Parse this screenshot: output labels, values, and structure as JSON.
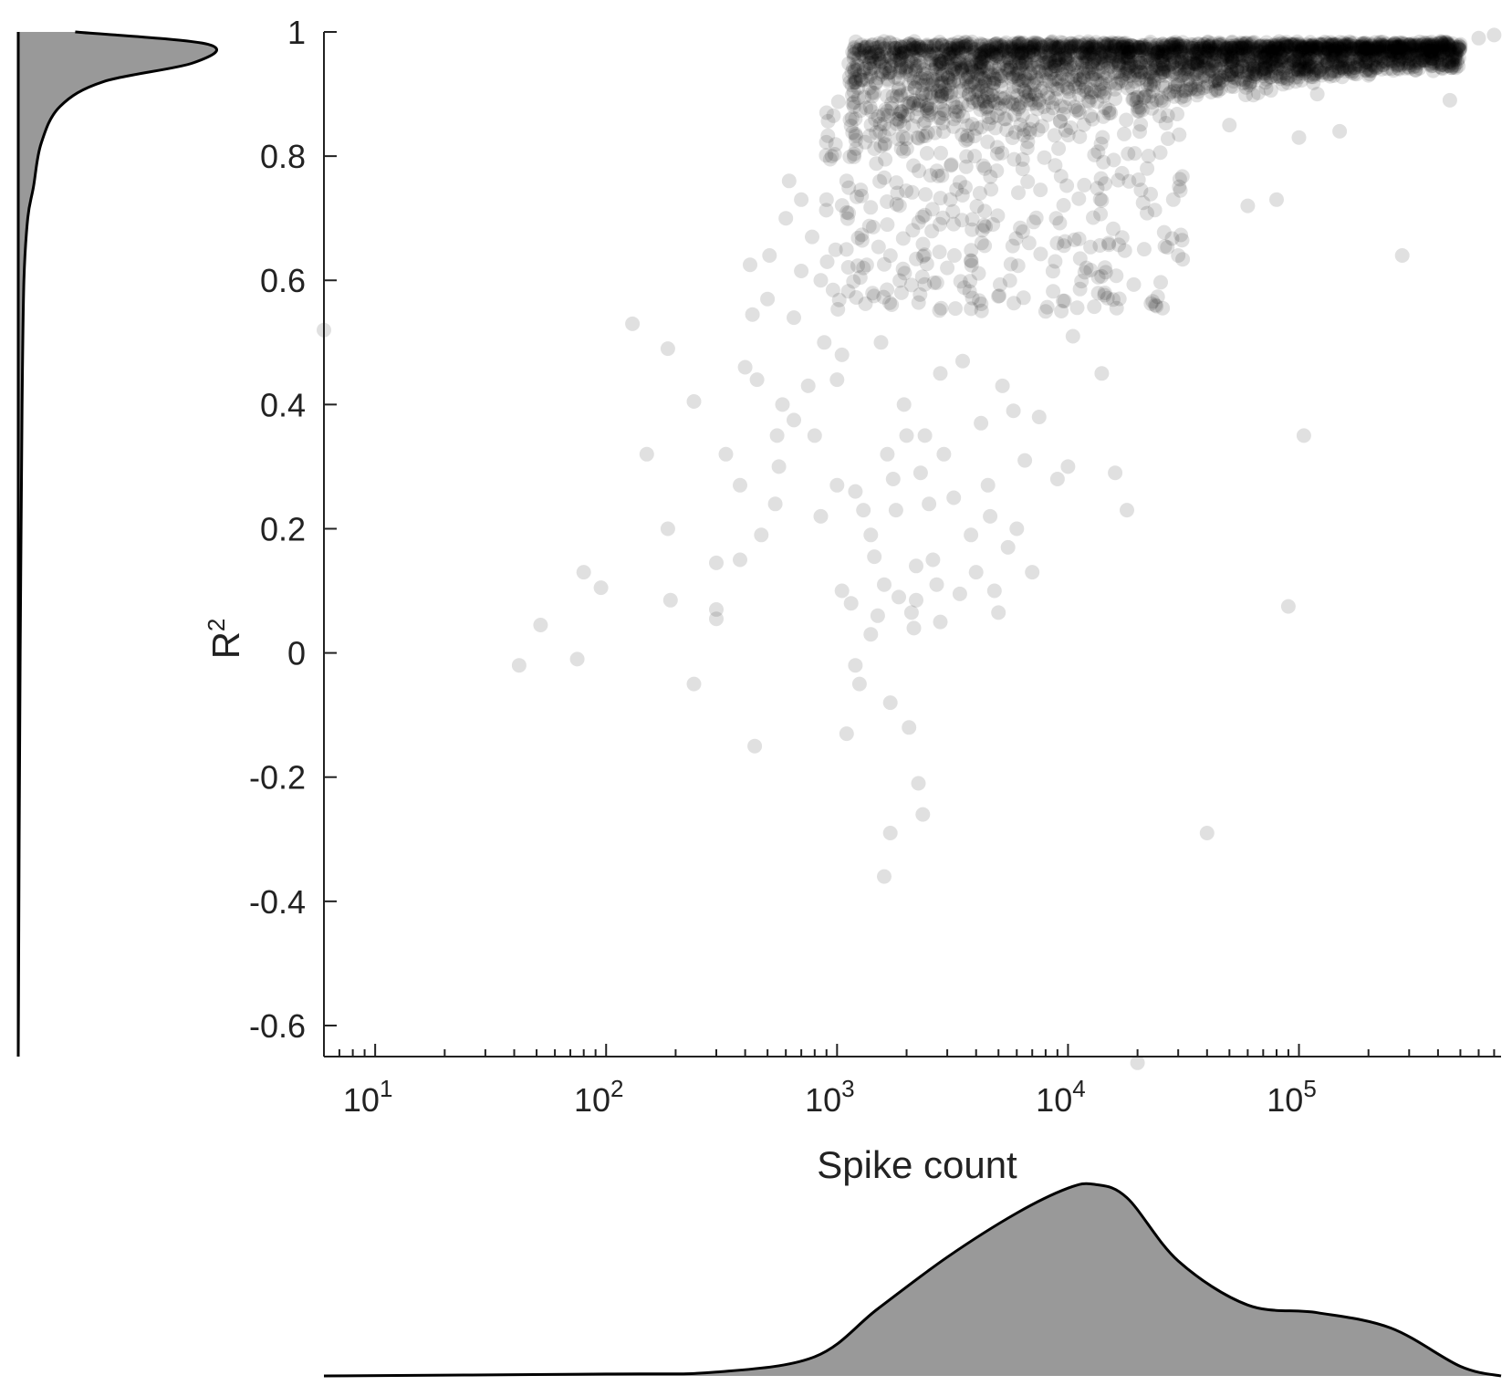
{
  "chart_data": {
    "type": "scatter",
    "xlabel": "Spike count",
    "ylabel_base": "R",
    "ylabel_sup": "2",
    "x_scale": "log",
    "xlim": [
      6,
      750000
    ],
    "ylim": [
      -0.65,
      1.0
    ],
    "x_ticks": [
      {
        "base": "10",
        "exp": "1",
        "value": 10
      },
      {
        "base": "10",
        "exp": "2",
        "value": 100
      },
      {
        "base": "10",
        "exp": "3",
        "value": 1000
      },
      {
        "base": "10",
        "exp": "4",
        "value": 10000
      },
      {
        "base": "10",
        "exp": "5",
        "value": 100000
      }
    ],
    "y_ticks": [
      "1",
      "0.8",
      "0.6",
      "0.4",
      "0.2",
      "0",
      "-0.2",
      "-0.4",
      "-0.6"
    ],
    "y_tick_values": [
      1,
      0.8,
      0.6,
      0.4,
      0.2,
      0,
      -0.2,
      -0.4,
      -0.6
    ],
    "grid": false,
    "marker_color": "#000000",
    "marker_alpha": 0.12,
    "density_fill": "#999999",
    "density_line": "#000000",
    "points": [
      [
        6,
        0.52
      ],
      [
        42,
        -0.02
      ],
      [
        52,
        0.045
      ],
      [
        75,
        -0.01
      ],
      [
        80,
        0.13
      ],
      [
        95,
        0.105
      ],
      [
        130,
        0.53
      ],
      [
        150,
        0.32
      ],
      [
        185,
        0.49
      ],
      [
        185,
        0.2
      ],
      [
        190,
        0.085
      ],
      [
        240,
        -0.05
      ],
      [
        240,
        0.405
      ],
      [
        300,
        0.145
      ],
      [
        300,
        0.07
      ],
      [
        300,
        0.055
      ],
      [
        330,
        0.32
      ],
      [
        380,
        0.15
      ],
      [
        380,
        0.27
      ],
      [
        400,
        0.46
      ],
      [
        420,
        0.625
      ],
      [
        430,
        0.545
      ],
      [
        440,
        -0.15
      ],
      [
        450,
        0.44
      ],
      [
        470,
        0.19
      ],
      [
        500,
        0.57
      ],
      [
        510,
        0.64
      ],
      [
        540,
        0.24
      ],
      [
        550,
        0.35
      ],
      [
        560,
        0.3
      ],
      [
        580,
        0.4
      ],
      [
        600,
        0.7
      ],
      [
        620,
        0.76
      ],
      [
        650,
        0.54
      ],
      [
        650,
        0.375
      ],
      [
        700,
        0.73
      ],
      [
        700,
        0.615
      ],
      [
        750,
        0.43
      ],
      [
        780,
        0.67
      ],
      [
        800,
        0.35
      ],
      [
        850,
        0.6
      ],
      [
        850,
        0.22
      ],
      [
        880,
        0.5
      ],
      [
        900,
        0.87
      ],
      [
        900,
        0.73
      ],
      [
        950,
        0.8
      ],
      [
        1000,
        0.44
      ],
      [
        1000,
        0.27
      ],
      [
        1050,
        0.1
      ],
      [
        1050,
        0.48
      ],
      [
        1100,
        -0.13
      ],
      [
        1100,
        0.76
      ],
      [
        1150,
        0.08
      ],
      [
        1200,
        -0.02
      ],
      [
        1200,
        0.26
      ],
      [
        1250,
        -0.05
      ],
      [
        1300,
        0.23
      ],
      [
        1300,
        0.62
      ],
      [
        1400,
        0.19
      ],
      [
        1400,
        0.03
      ],
      [
        1450,
        0.155
      ],
      [
        1500,
        0.06
      ],
      [
        1550,
        0.5
      ],
      [
        1600,
        0.11
      ],
      [
        1650,
        0.32
      ],
      [
        1700,
        -0.08
      ],
      [
        1700,
        -0.29
      ],
      [
        1600,
        -0.36
      ],
      [
        1750,
        0.28
      ],
      [
        1800,
        0.23
      ],
      [
        1850,
        0.09
      ],
      [
        1900,
        0.58
      ],
      [
        1950,
        0.4
      ],
      [
        2000,
        0.35
      ],
      [
        2050,
        -0.12
      ],
      [
        2100,
        0.065
      ],
      [
        2150,
        0.04
      ],
      [
        2200,
        0.14
      ],
      [
        2200,
        0.085
      ],
      [
        2250,
        -0.21
      ],
      [
        2300,
        0.29
      ],
      [
        2350,
        -0.26
      ],
      [
        2400,
        0.35
      ],
      [
        2500,
        0.24
      ],
      [
        2600,
        0.15
      ],
      [
        2700,
        0.11
      ],
      [
        2800,
        0.05
      ],
      [
        2800,
        0.45
      ],
      [
        2900,
        0.32
      ],
      [
        3000,
        0.62
      ],
      [
        3200,
        0.25
      ],
      [
        3400,
        0.095
      ],
      [
        3500,
        0.47
      ],
      [
        3800,
        0.19
      ],
      [
        4000,
        0.13
      ],
      [
        4200,
        0.37
      ],
      [
        4500,
        0.27
      ],
      [
        4600,
        0.22
      ],
      [
        4800,
        0.1
      ],
      [
        5000,
        0.065
      ],
      [
        5200,
        0.43
      ],
      [
        5500,
        0.17
      ],
      [
        5800,
        0.39
      ],
      [
        6000,
        0.2
      ],
      [
        6500,
        0.31
      ],
      [
        7000,
        0.13
      ],
      [
        7500,
        0.38
      ],
      [
        8000,
        0.55
      ],
      [
        9000,
        0.28
      ],
      [
        10000,
        0.3
      ],
      [
        10500,
        0.51
      ],
      [
        12000,
        0.62
      ],
      [
        14000,
        0.45
      ],
      [
        15000,
        0.66
      ],
      [
        16000,
        0.29
      ],
      [
        18000,
        0.23
      ],
      [
        20000,
        -0.66
      ],
      [
        22000,
        0.78
      ],
      [
        30000,
        0.64
      ],
      [
        40000,
        -0.29
      ],
      [
        50000,
        0.85
      ],
      [
        60000,
        0.72
      ],
      [
        80000,
        0.73
      ],
      [
        90000,
        0.075
      ],
      [
        100000,
        0.83
      ],
      [
        105000,
        0.35
      ],
      [
        120000,
        0.9
      ],
      [
        150000,
        0.84
      ],
      [
        200000,
        0.93
      ],
      [
        280000,
        0.64
      ],
      [
        350000,
        0.96
      ],
      [
        450000,
        0.89
      ],
      [
        500000,
        0.98
      ],
      [
        600000,
        0.99
      ],
      [
        700000,
        0.995
      ]
    ],
    "x_density": [
      [
        6,
        0.0
      ],
      [
        100,
        0.01
      ],
      [
        300,
        0.02
      ],
      [
        800,
        0.1
      ],
      [
        1500,
        0.35
      ],
      [
        3000,
        0.62
      ],
      [
        6000,
        0.85
      ],
      [
        10000,
        0.98
      ],
      [
        13000,
        1.0
      ],
      [
        18000,
        0.93
      ],
      [
        30000,
        0.6
      ],
      [
        60000,
        0.37
      ],
      [
        120000,
        0.33
      ],
      [
        250000,
        0.25
      ],
      [
        500000,
        0.05
      ],
      [
        750000,
        0.0
      ]
    ],
    "y_density": [
      [
        1.0,
        0.3
      ],
      [
        0.98,
        1.0
      ],
      [
        0.95,
        0.92
      ],
      [
        0.92,
        0.45
      ],
      [
        0.88,
        0.22
      ],
      [
        0.82,
        0.12
      ],
      [
        0.75,
        0.08
      ],
      [
        0.7,
        0.05
      ],
      [
        0.6,
        0.03
      ],
      [
        0.4,
        0.02
      ],
      [
        0.2,
        0.015
      ],
      [
        0,
        0.01
      ],
      [
        -0.3,
        0.005
      ],
      [
        -0.65,
        0.0
      ]
    ]
  }
}
